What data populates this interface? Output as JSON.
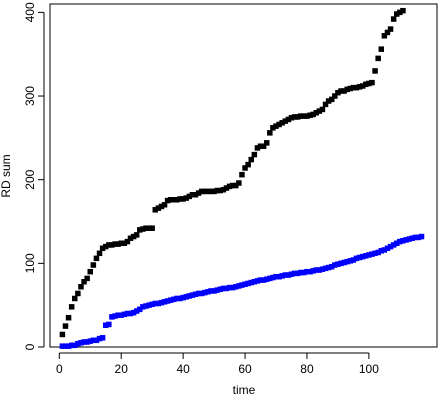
{
  "chart_data": {
    "type": "scatter",
    "title": "",
    "xlabel": "time",
    "ylabel": "RD sum",
    "xlim": [
      -3,
      122
    ],
    "ylim": [
      0,
      410
    ],
    "xticks": [
      0,
      20,
      40,
      60,
      80,
      100
    ],
    "yticks": [
      0,
      100,
      200,
      300,
      400
    ],
    "grid": false,
    "legend": "none",
    "series": [
      {
        "color": "#000000",
        "marker": "square",
        "points": [
          [
            1,
            15
          ],
          [
            2,
            25
          ],
          [
            3,
            35
          ],
          [
            4,
            48
          ],
          [
            5,
            58
          ],
          [
            6,
            64
          ],
          [
            7,
            72
          ],
          [
            8,
            78
          ],
          [
            9,
            82
          ],
          [
            10,
            90
          ],
          [
            11,
            98
          ],
          [
            12,
            106
          ],
          [
            13,
            112
          ],
          [
            14,
            118
          ],
          [
            15,
            120
          ],
          [
            16,
            122
          ],
          [
            17,
            122
          ],
          [
            18,
            123
          ],
          [
            19,
            123
          ],
          [
            20,
            124
          ],
          [
            21,
            124
          ],
          [
            22,
            126
          ],
          [
            23,
            130
          ],
          [
            24,
            132
          ],
          [
            25,
            134
          ],
          [
            26,
            140
          ],
          [
            27,
            141
          ],
          [
            28,
            142
          ],
          [
            29,
            142
          ],
          [
            30,
            142
          ],
          [
            31,
            164
          ],
          [
            32,
            166
          ],
          [
            33,
            168
          ],
          [
            34,
            170
          ],
          [
            35,
            175
          ],
          [
            36,
            176
          ],
          [
            37,
            176
          ],
          [
            38,
            176
          ],
          [
            39,
            177
          ],
          [
            40,
            177
          ],
          [
            41,
            178
          ],
          [
            42,
            180
          ],
          [
            43,
            182
          ],
          [
            44,
            182
          ],
          [
            45,
            184
          ],
          [
            46,
            186
          ],
          [
            47,
            186
          ],
          [
            48,
            186
          ],
          [
            49,
            186
          ],
          [
            50,
            186
          ],
          [
            51,
            187
          ],
          [
            52,
            187
          ],
          [
            53,
            188
          ],
          [
            54,
            190
          ],
          [
            55,
            192
          ],
          [
            56,
            193
          ],
          [
            57,
            193
          ],
          [
            58,
            196
          ],
          [
            59,
            206
          ],
          [
            60,
            214
          ],
          [
            61,
            218
          ],
          [
            62,
            224
          ],
          [
            63,
            230
          ],
          [
            64,
            238
          ],
          [
            65,
            240
          ],
          [
            66,
            240
          ],
          [
            67,
            244
          ],
          [
            68,
            256
          ],
          [
            69,
            262
          ],
          [
            70,
            264
          ],
          [
            71,
            266
          ],
          [
            72,
            268
          ],
          [
            73,
            270
          ],
          [
            74,
            272
          ],
          [
            75,
            274
          ],
          [
            76,
            275
          ],
          [
            77,
            275
          ],
          [
            78,
            276
          ],
          [
            79,
            276
          ],
          [
            80,
            276
          ],
          [
            81,
            277
          ],
          [
            82,
            278
          ],
          [
            83,
            280
          ],
          [
            84,
            282
          ],
          [
            85,
            284
          ],
          [
            86,
            290
          ],
          [
            87,
            294
          ],
          [
            88,
            296
          ],
          [
            89,
            300
          ],
          [
            90,
            304
          ],
          [
            91,
            306
          ],
          [
            92,
            306
          ],
          [
            93,
            308
          ],
          [
            94,
            309
          ],
          [
            95,
            310
          ],
          [
            96,
            310
          ],
          [
            97,
            311
          ],
          [
            98,
            312
          ],
          [
            99,
            314
          ],
          [
            100,
            315
          ],
          [
            101,
            316
          ],
          [
            102,
            330
          ],
          [
            103,
            345
          ],
          [
            104,
            356
          ],
          [
            105,
            372
          ],
          [
            106,
            376
          ],
          [
            107,
            380
          ],
          [
            108,
            392
          ],
          [
            109,
            398
          ],
          [
            110,
            400
          ],
          [
            111,
            402
          ]
        ]
      },
      {
        "color": "#0000ff",
        "marker": "square",
        "points": [
          [
            1,
            1
          ],
          [
            2,
            1
          ],
          [
            3,
            1
          ],
          [
            4,
            2
          ],
          [
            5,
            2
          ],
          [
            6,
            4
          ],
          [
            7,
            5
          ],
          [
            8,
            6
          ],
          [
            9,
            6
          ],
          [
            10,
            7
          ],
          [
            11,
            8
          ],
          [
            12,
            8
          ],
          [
            13,
            10
          ],
          [
            14,
            11
          ],
          [
            15,
            26
          ],
          [
            16,
            27
          ],
          [
            17,
            36
          ],
          [
            18,
            37
          ],
          [
            19,
            38
          ],
          [
            20,
            38
          ],
          [
            21,
            39
          ],
          [
            22,
            40
          ],
          [
            23,
            40
          ],
          [
            24,
            41
          ],
          [
            25,
            43
          ],
          [
            26,
            45
          ],
          [
            27,
            48
          ],
          [
            28,
            49
          ],
          [
            29,
            50
          ],
          [
            30,
            51
          ],
          [
            31,
            52
          ],
          [
            32,
            52
          ],
          [
            33,
            53
          ],
          [
            34,
            54
          ],
          [
            35,
            55
          ],
          [
            36,
            56
          ],
          [
            37,
            57
          ],
          [
            38,
            58
          ],
          [
            39,
            58
          ],
          [
            40,
            59
          ],
          [
            41,
            60
          ],
          [
            42,
            61
          ],
          [
            43,
            62
          ],
          [
            44,
            63
          ],
          [
            45,
            64
          ],
          [
            46,
            64
          ],
          [
            47,
            65
          ],
          [
            48,
            66
          ],
          [
            49,
            67
          ],
          [
            50,
            67
          ],
          [
            51,
            68
          ],
          [
            52,
            69
          ],
          [
            53,
            70
          ],
          [
            54,
            70
          ],
          [
            55,
            71
          ],
          [
            56,
            71
          ],
          [
            57,
            72
          ],
          [
            58,
            73
          ],
          [
            59,
            74
          ],
          [
            60,
            75
          ],
          [
            61,
            76
          ],
          [
            62,
            77
          ],
          [
            63,
            78
          ],
          [
            64,
            79
          ],
          [
            65,
            80
          ],
          [
            66,
            80
          ],
          [
            67,
            81
          ],
          [
            68,
            82
          ],
          [
            69,
            83
          ],
          [
            70,
            84
          ],
          [
            71,
            84
          ],
          [
            72,
            85
          ],
          [
            73,
            86
          ],
          [
            74,
            86
          ],
          [
            75,
            87
          ],
          [
            76,
            88
          ],
          [
            77,
            88
          ],
          [
            78,
            89
          ],
          [
            79,
            89
          ],
          [
            80,
            90
          ],
          [
            81,
            90
          ],
          [
            82,
            91
          ],
          [
            83,
            92
          ],
          [
            84,
            92
          ],
          [
            85,
            93
          ],
          [
            86,
            94
          ],
          [
            87,
            95
          ],
          [
            88,
            96
          ],
          [
            89,
            98
          ],
          [
            90,
            99
          ],
          [
            91,
            100
          ],
          [
            92,
            101
          ],
          [
            93,
            102
          ],
          [
            94,
            103
          ],
          [
            95,
            104
          ],
          [
            96,
            106
          ],
          [
            97,
            107
          ],
          [
            98,
            108
          ],
          [
            99,
            109
          ],
          [
            100,
            110
          ],
          [
            101,
            111
          ],
          [
            102,
            112
          ],
          [
            103,
            113
          ],
          [
            104,
            115
          ],
          [
            105,
            116
          ],
          [
            106,
            118
          ],
          [
            107,
            120
          ],
          [
            108,
            122
          ],
          [
            109,
            124
          ],
          [
            110,
            126
          ],
          [
            111,
            127
          ],
          [
            112,
            128
          ],
          [
            113,
            129
          ],
          [
            114,
            130
          ],
          [
            115,
            131
          ],
          [
            116,
            131
          ],
          [
            117,
            132
          ]
        ]
      }
    ]
  }
}
